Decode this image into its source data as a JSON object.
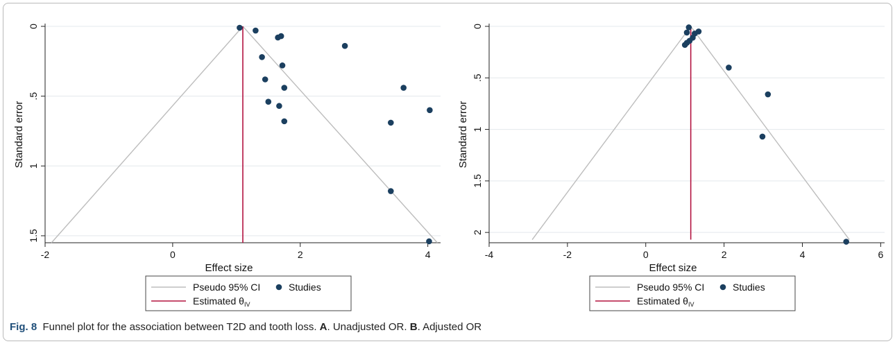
{
  "caption": {
    "figure_label": "Fig. 8",
    "text_part1": "Funnel plot for the association between T2D and tooth loss. ",
    "label_a": "A",
    "text_part2": ". Unadjusted OR. ",
    "label_b": "B",
    "text_part3": ". Adjusted OR"
  },
  "colors": {
    "points": "#1b3f5f",
    "ci_lines": "#bdbdbd",
    "estimate_line": "#b3123f",
    "gridlines": "#e3e8ec",
    "frame": "#b9b9b9"
  },
  "chart_data": [
    {
      "type": "scatter",
      "panel": "A",
      "xlabel": "Effect size",
      "ylabel": "Standard error",
      "y_reversed": true,
      "xlim": [
        -2,
        4.2
      ],
      "ylim": [
        0,
        1.55
      ],
      "xticks": [
        -2,
        0,
        2,
        4
      ],
      "xtick_labels": [
        "-2",
        "0",
        "2",
        "4"
      ],
      "yticks": [
        0,
        0.5,
        1,
        1.5
      ],
      "ytick_labels": [
        "0",
        ".5",
        "1",
        "1.5"
      ],
      "grid": true,
      "estimate": 1.1,
      "pseudo_ci": {
        "apex": [
          1.1,
          0
        ],
        "bottom_se": 1.55,
        "left_x": -1.9,
        "right_x": 4.15
      },
      "legend": {
        "placement": "bottom-center",
        "ci_label": "Pseudo 95% CI",
        "studies_label": "Studies",
        "estimate_label_main": "Estimated θ",
        "estimate_label_sub": "IV"
      },
      "points": [
        {
          "x": 1.05,
          "y": 0.01
        },
        {
          "x": 1.3,
          "y": 0.03
        },
        {
          "x": 1.65,
          "y": 0.08
        },
        {
          "x": 1.7,
          "y": 0.07
        },
        {
          "x": 2.7,
          "y": 0.14
        },
        {
          "x": 1.4,
          "y": 0.22
        },
        {
          "x": 1.72,
          "y": 0.28
        },
        {
          "x": 1.45,
          "y": 0.38
        },
        {
          "x": 1.75,
          "y": 0.44
        },
        {
          "x": 3.62,
          "y": 0.44
        },
        {
          "x": 1.5,
          "y": 0.54
        },
        {
          "x": 1.67,
          "y": 0.57
        },
        {
          "x": 4.03,
          "y": 0.6
        },
        {
          "x": 1.75,
          "y": 0.68
        },
        {
          "x": 3.42,
          "y": 0.69
        },
        {
          "x": 3.42,
          "y": 1.18
        },
        {
          "x": 4.02,
          "y": 1.54
        }
      ]
    },
    {
      "type": "scatter",
      "panel": "B",
      "xlabel": "Effect size",
      "ylabel": "Standard error",
      "y_reversed": true,
      "xlim": [
        -4,
        6.1
      ],
      "ylim": [
        0,
        2.1
      ],
      "xticks": [
        -4,
        -2,
        0,
        2,
        4,
        6
      ],
      "xtick_labels": [
        "-4",
        "-2",
        "0",
        "2",
        "4",
        "6"
      ],
      "yticks": [
        0,
        0.5,
        1,
        1.5,
        2
      ],
      "ytick_labels": [
        "0",
        ".5",
        "1",
        "1.5",
        "2"
      ],
      "grid": true,
      "estimate": 1.15,
      "pseudo_ci": {
        "apex": [
          1.15,
          0
        ],
        "bottom_se": 2.07,
        "left_x": -2.9,
        "right_x": 5.2
      },
      "legend": {
        "placement": "bottom-center",
        "ci_label": "Pseudo 95% CI",
        "studies_label": "Studies",
        "estimate_label_main": "Estimated θ",
        "estimate_label_sub": "IV"
      },
      "points": [
        {
          "x": 1.1,
          "y": 0.01
        },
        {
          "x": 1.35,
          "y": 0.05
        },
        {
          "x": 1.25,
          "y": 0.07
        },
        {
          "x": 1.05,
          "y": 0.06
        },
        {
          "x": 1.2,
          "y": 0.11
        },
        {
          "x": 1.12,
          "y": 0.14
        },
        {
          "x": 1.05,
          "y": 0.16
        },
        {
          "x": 1.0,
          "y": 0.18
        },
        {
          "x": 2.12,
          "y": 0.4
        },
        {
          "x": 3.12,
          "y": 0.66
        },
        {
          "x": 2.98,
          "y": 1.07
        },
        {
          "x": 5.12,
          "y": 2.09
        }
      ]
    }
  ]
}
